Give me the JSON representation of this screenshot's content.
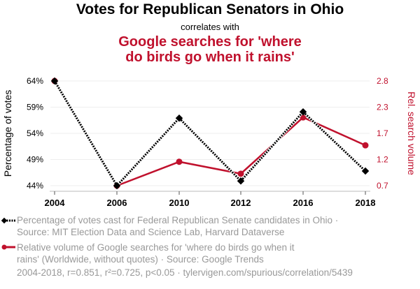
{
  "header": {
    "title": "Votes for Republican Senators in Ohio",
    "subtitle": "correlates with",
    "title2_line1": "Google searches for 'where",
    "title2_line2": "do birds go when it rains'"
  },
  "colors": {
    "series1": "#000000",
    "series2": "#c0112d",
    "grid": "#eeeeee",
    "muted": "#999999"
  },
  "chart_data": {
    "type": "line",
    "x": [
      "2004",
      "2006",
      "2010",
      "2012",
      "2016",
      "2018"
    ],
    "series": [
      {
        "name": "Percentage of votes cast for Federal Republican Senate candidates in Ohio",
        "axis": "left",
        "style": "dotted-diamond",
        "values": [
          64.0,
          44.0,
          56.9,
          44.9,
          58.1,
          46.8
        ]
      },
      {
        "name": "Relative volume of Google searches for 'where do birds go when it rains' (Worldwide, without quotes)",
        "axis": "right",
        "style": "solid-circle",
        "values": [
          2.8,
          0.7,
          1.18,
          0.94,
          2.07,
          1.51
        ]
      }
    ],
    "ylabel_left": "Percentage of votes",
    "ylabel_right": "Rel. search volume",
    "yticks_left": [
      "64%",
      "59%",
      "54%",
      "49%",
      "44%"
    ],
    "yticks_right": [
      "2.8",
      "2.3",
      "1.7",
      "1.2",
      "0.7"
    ],
    "ylim_left": [
      44,
      64
    ],
    "ylim_right": [
      0.7,
      2.8
    ],
    "grid": true
  },
  "legend": {
    "s1_line1": "Percentage of votes cast for Federal Republican Senate candidates in Ohio ·",
    "s1_line2": "Source: MIT Election Data and Science Lab, Harvard Dataverse",
    "s2_line1": "Relative volume of Google searches for 'where do birds go when it",
    "s2_line2": "rains' (Worldwide, without quotes) · Source: Google Trends"
  },
  "footer": "2004-2018, r=0.851, r²=0.725, p<0.05 · tylervigen.com/spurious/correlation/5439"
}
